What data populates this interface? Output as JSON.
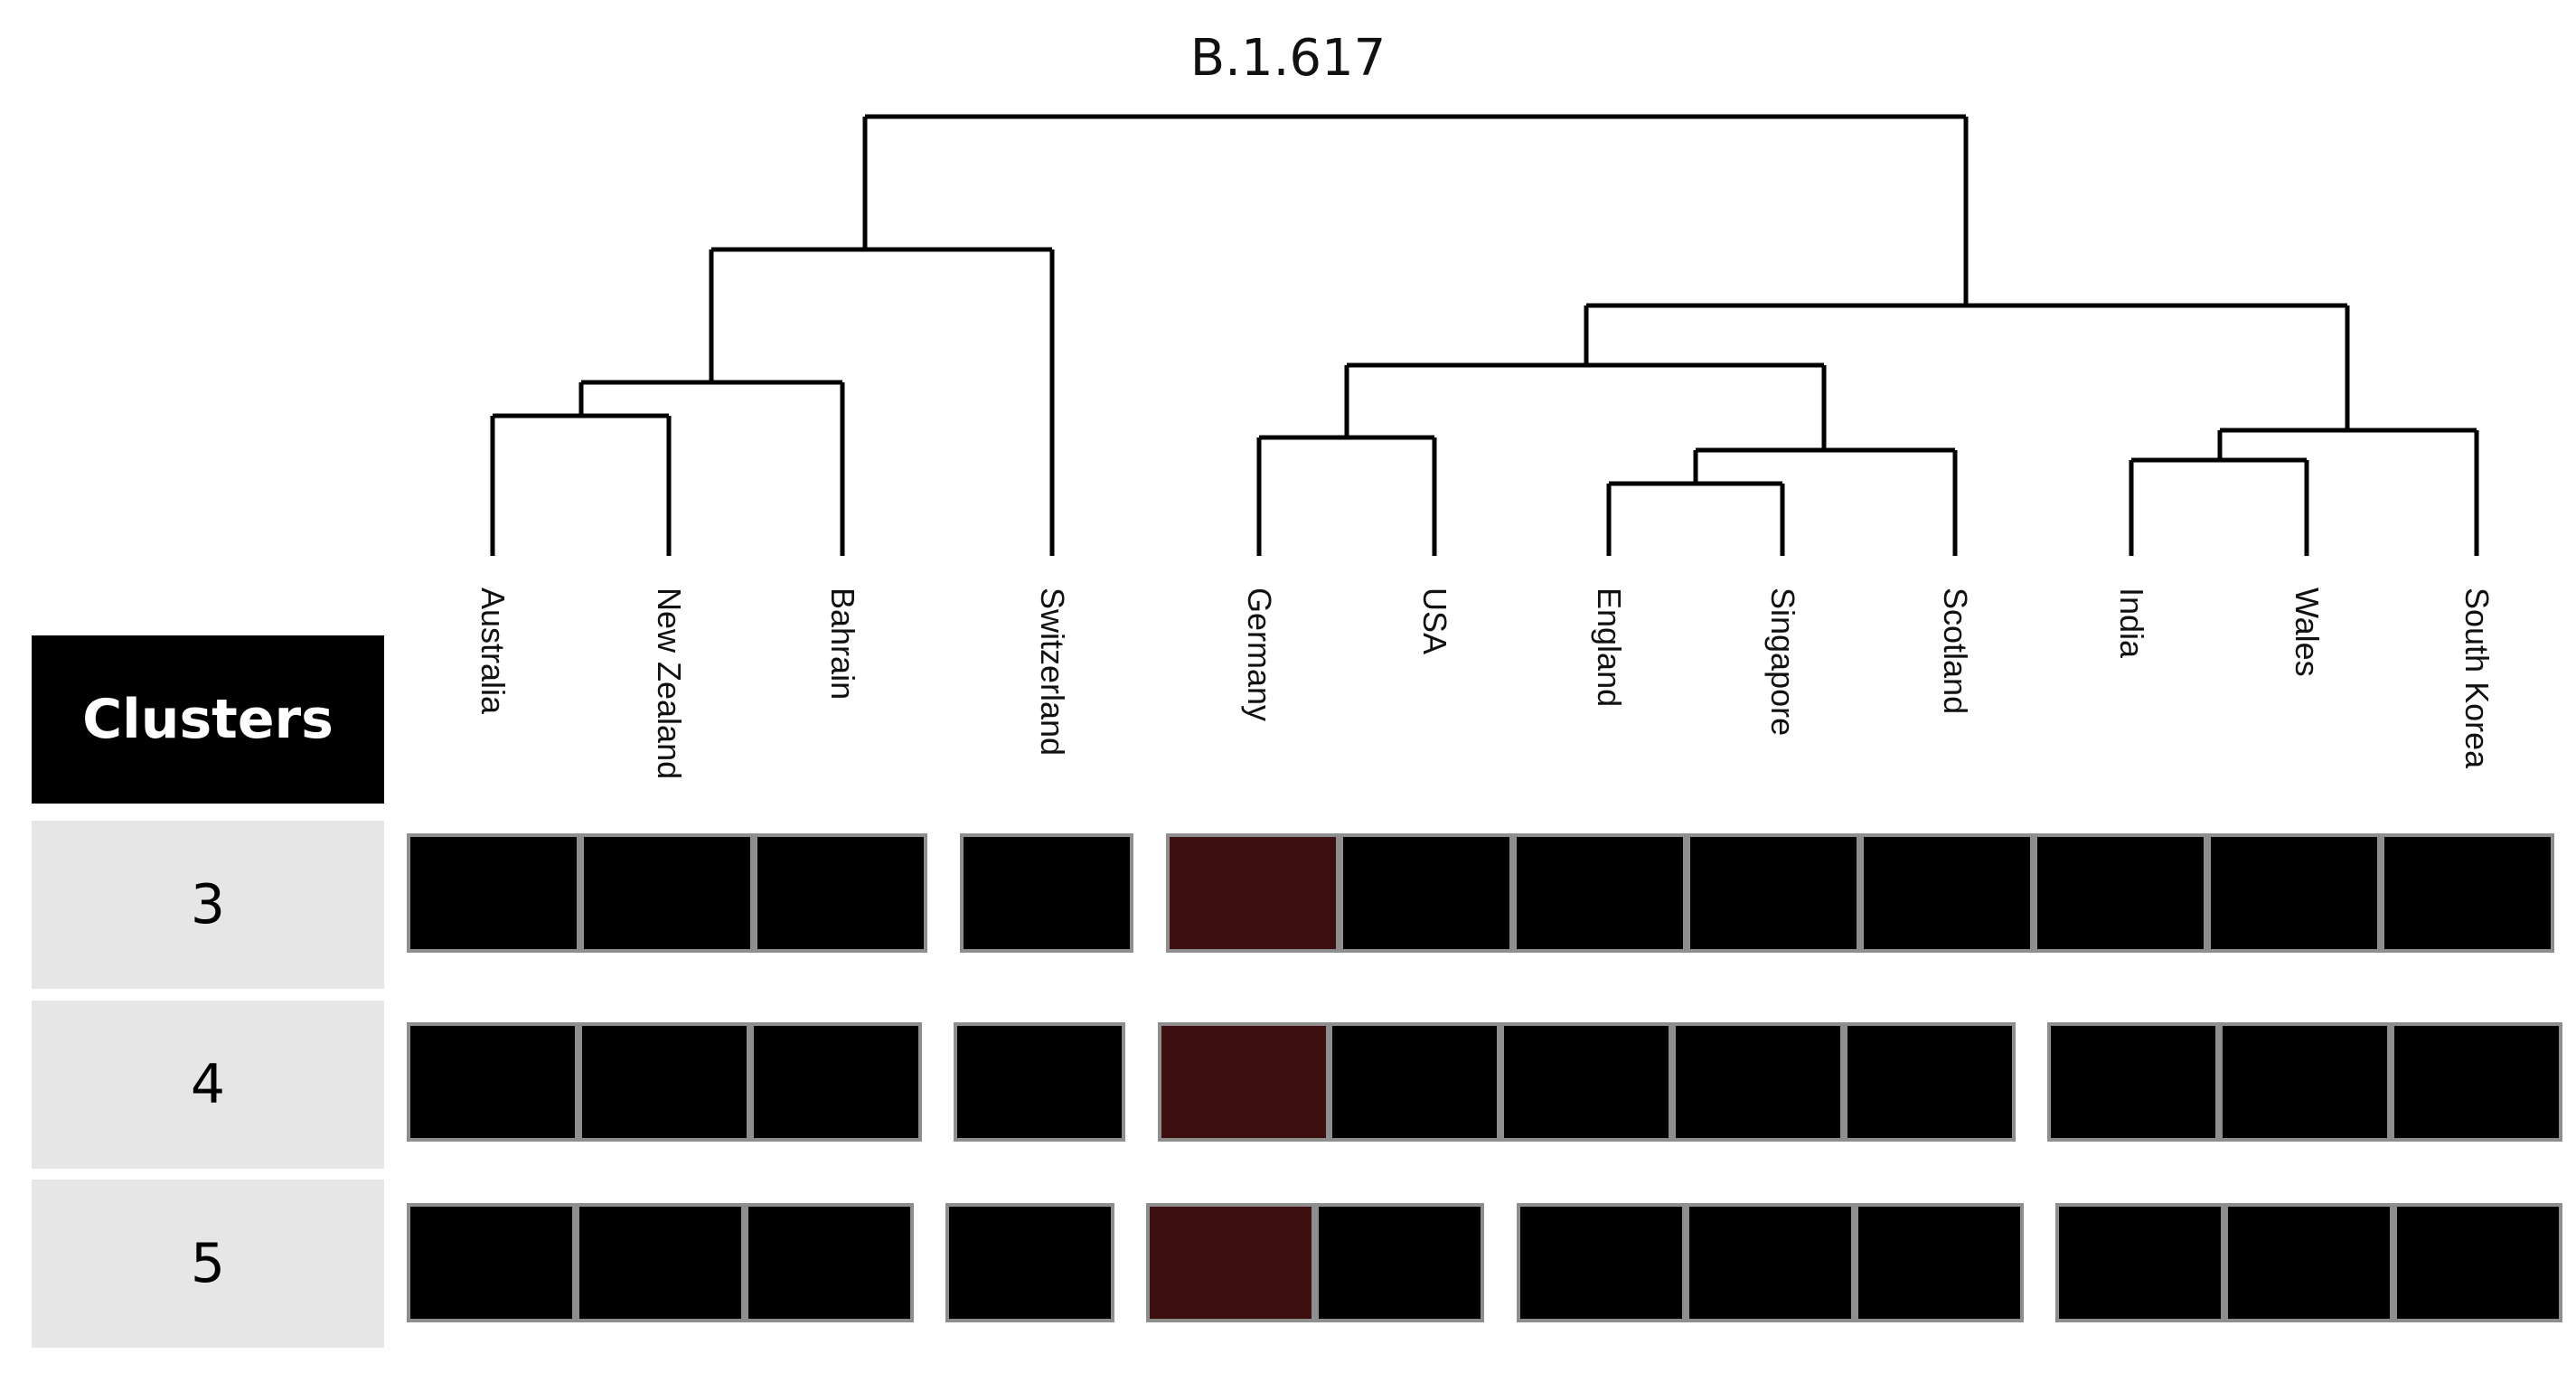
{
  "title": "B.1.617",
  "header": "Clusters",
  "leaves": [
    "Australia",
    "New Zealand",
    "Bahrain",
    "Switzerland",
    "Germany",
    "USA",
    "England",
    "Singapore",
    "Scotland",
    "India",
    "Wales",
    "South Korea"
  ],
  "rows": [
    {
      "label": "3",
      "groups": [
        [
          "Australia",
          "New Zealand",
          "Bahrain"
        ],
        [
          "Switzerland"
        ],
        [
          "Germany",
          "USA",
          "England",
          "Singapore",
          "Scotland",
          "India",
          "Wales",
          "South Korea"
        ]
      ],
      "highlight": [
        "Germany"
      ]
    },
    {
      "label": "4",
      "groups": [
        [
          "Australia",
          "New Zealand",
          "Bahrain"
        ],
        [
          "Switzerland"
        ],
        [
          "Germany",
          "USA",
          "England",
          "Singapore",
          "Scotland"
        ],
        [
          "India",
          "Wales",
          "South Korea"
        ]
      ],
      "highlight": [
        "Germany"
      ]
    },
    {
      "label": "5",
      "groups": [
        [
          "Australia",
          "New Zealand",
          "Bahrain"
        ],
        [
          "Switzerland"
        ],
        [
          "Germany",
          "USA"
        ],
        [
          "England",
          "Singapore",
          "Scotland"
        ],
        [
          "India",
          "Wales",
          "South Korea"
        ]
      ],
      "highlight": [
        "Germany"
      ]
    }
  ],
  "colors": {
    "cell": "#000000",
    "highlight": "#3c1010",
    "border": "#8e8e8e"
  }
}
